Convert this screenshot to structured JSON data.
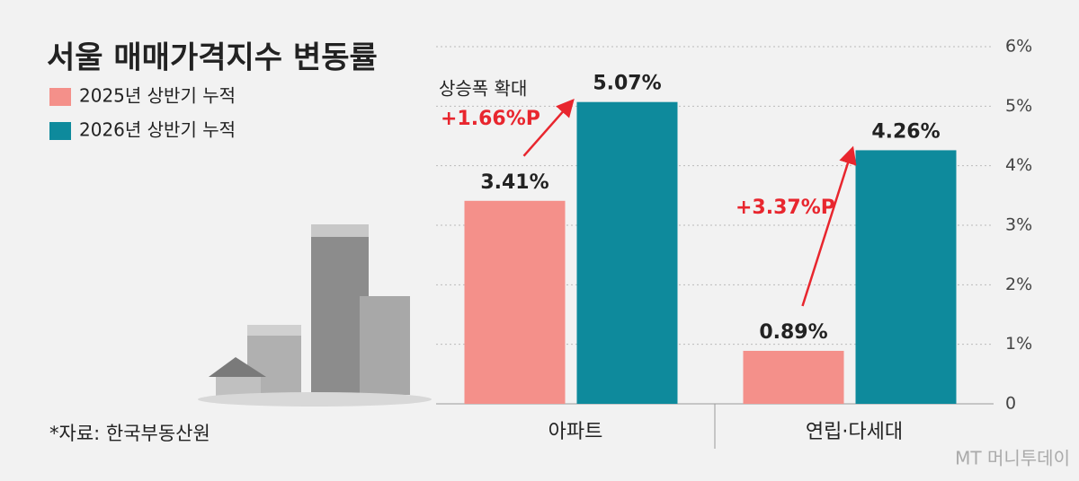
{
  "chart_data": {
    "type": "bar",
    "title": "서울 매매가격지수 변동률",
    "categories": [
      "아파트",
      "연립·다세대"
    ],
    "series": [
      {
        "name": "2025년 상반기 누적",
        "color": "#f4908a",
        "values": [
          3.41,
          0.89
        ],
        "value_labels": [
          "3.41%",
          "0.89%"
        ]
      },
      {
        "name": "2026년 상반기 누적",
        "color": "#0e8a9c",
        "values": [
          5.07,
          4.26
        ],
        "value_labels": [
          "5.07%",
          "4.26%"
        ]
      }
    ],
    "ylim": [
      0,
      6
    ],
    "yticks": [
      0,
      {
        "value": 1,
        "label": "1%"
      },
      {
        "value": 2,
        "label": "2%"
      },
      {
        "value": 3,
        "label": "3%"
      },
      {
        "value": 4,
        "label": "4%"
      },
      {
        "value": 5,
        "label": "5%"
      },
      {
        "value": 6,
        "label": "6%"
      }
    ],
    "grid": true,
    "annotations": [
      "상승폭 확대",
      "+1.66%P",
      "+3.37%P"
    ],
    "source": "*자료: 한국부동산원",
    "watermark": "MT 머니투데이"
  }
}
